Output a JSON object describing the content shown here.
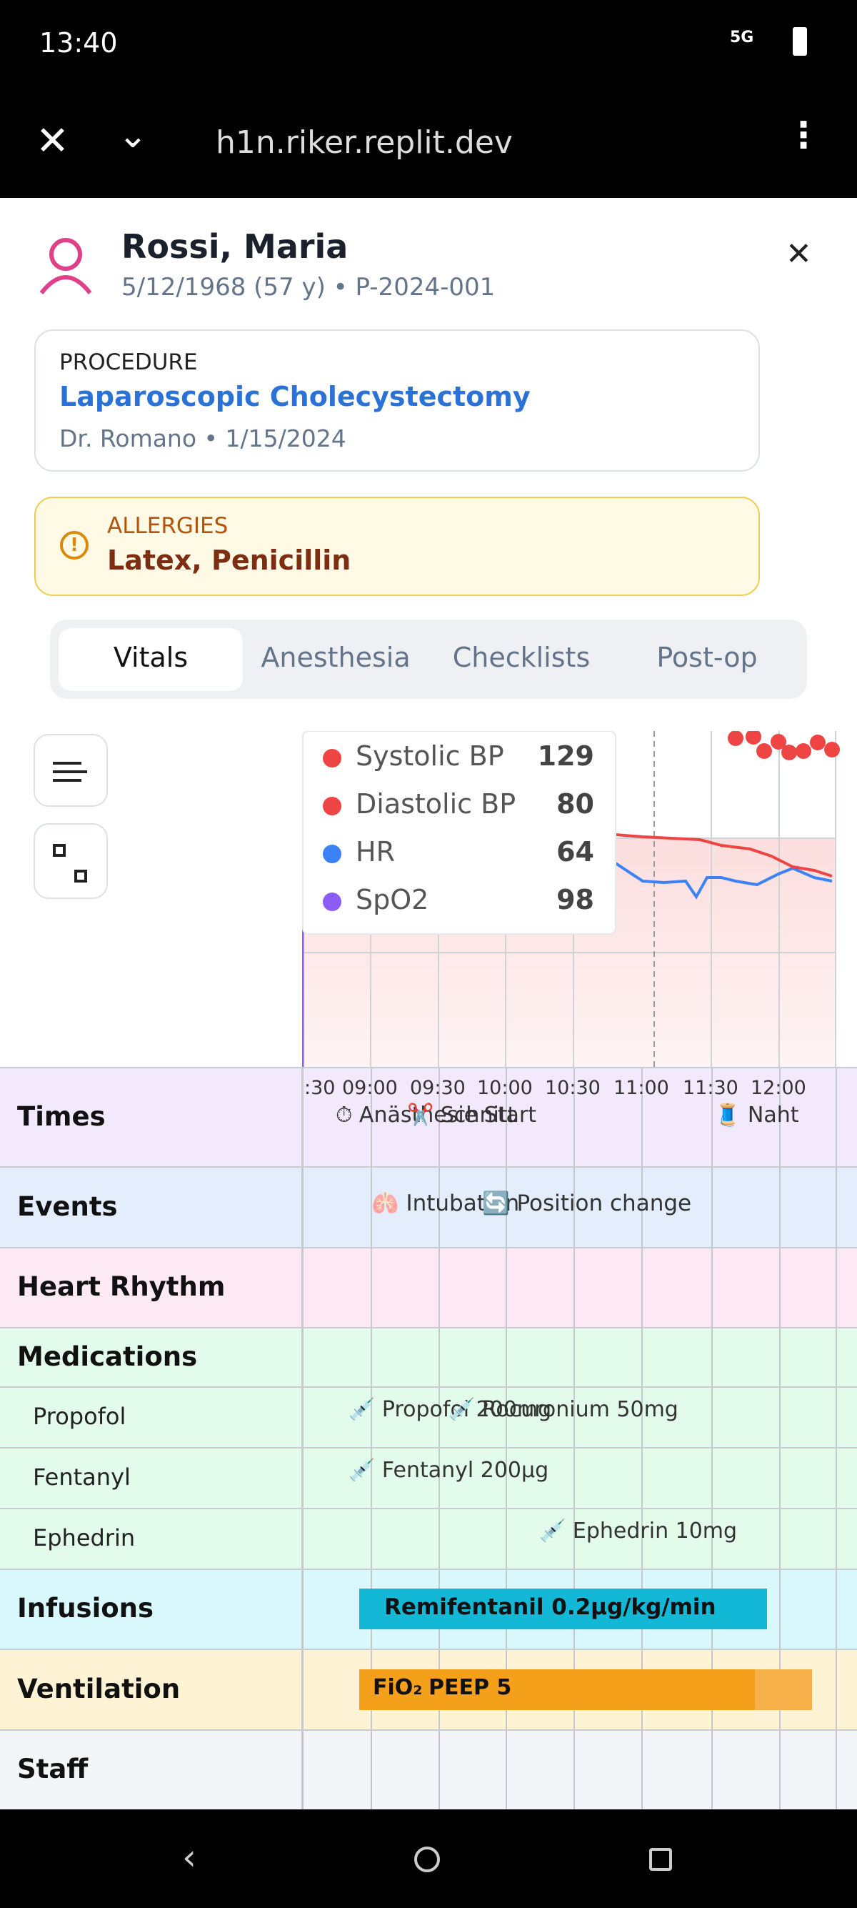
{
  "status_bar": {
    "time": "13:40",
    "network": "5G"
  },
  "browser": {
    "url": "h1n.riker.replit.dev"
  },
  "patient": {
    "name": "Rossi, Maria",
    "details": "5/12/1968 (57 y) • P-2024-001"
  },
  "procedure": {
    "label": "PROCEDURE",
    "name": "Laparoscopic Cholecystectomy",
    "meta": "Dr. Romano • 1/15/2024"
  },
  "allergies": {
    "label": "ALLERGIES",
    "value": "Latex, Penicillin"
  },
  "tabs": [
    "Vitals",
    "Anesthesia",
    "Checklists",
    "Post-op"
  ],
  "tooltip": [
    {
      "name": "Systolic BP",
      "value": 129
    },
    {
      "name": "Diastolic BP",
      "value": 80
    },
    {
      "name": "HR",
      "value": 64
    },
    {
      "name": "SpO2",
      "value": 98
    }
  ],
  "timeline": {
    "time_labels": [
      ":30",
      "09:00",
      "09:30",
      "10:00",
      "10:30",
      "11:00",
      "11:30",
      "12:00"
    ],
    "rows": {
      "times": "Times",
      "events": "Events",
      "heart_rhythm": "Heart Rhythm",
      "medications": "Medications",
      "infusions": "Infusions",
      "ventilation": "Ventilation",
      "staff": "Staff"
    },
    "time_events": [
      "⏱ Anästhesie Start",
      "✂️ Schnitt",
      "🧵 Naht"
    ],
    "events": [
      "🫁 Intubation",
      "🔄 Position change"
    ],
    "medications": [
      {
        "name": "Propofol",
        "entries": [
          "💉 Propofol 200mg",
          "💉 Rocuronium 50mg"
        ]
      },
      {
        "name": "Fentanyl",
        "entries": [
          "💉 Fentanyl 200µg"
        ]
      },
      {
        "name": "Ephedrin",
        "entries": [
          "💉 Ephedrin 10mg"
        ]
      }
    ],
    "infusion": "Remifentanil 0.2µg/kg/min",
    "ventilation": [
      "FiO₂",
      "PEEP 5"
    ]
  }
}
